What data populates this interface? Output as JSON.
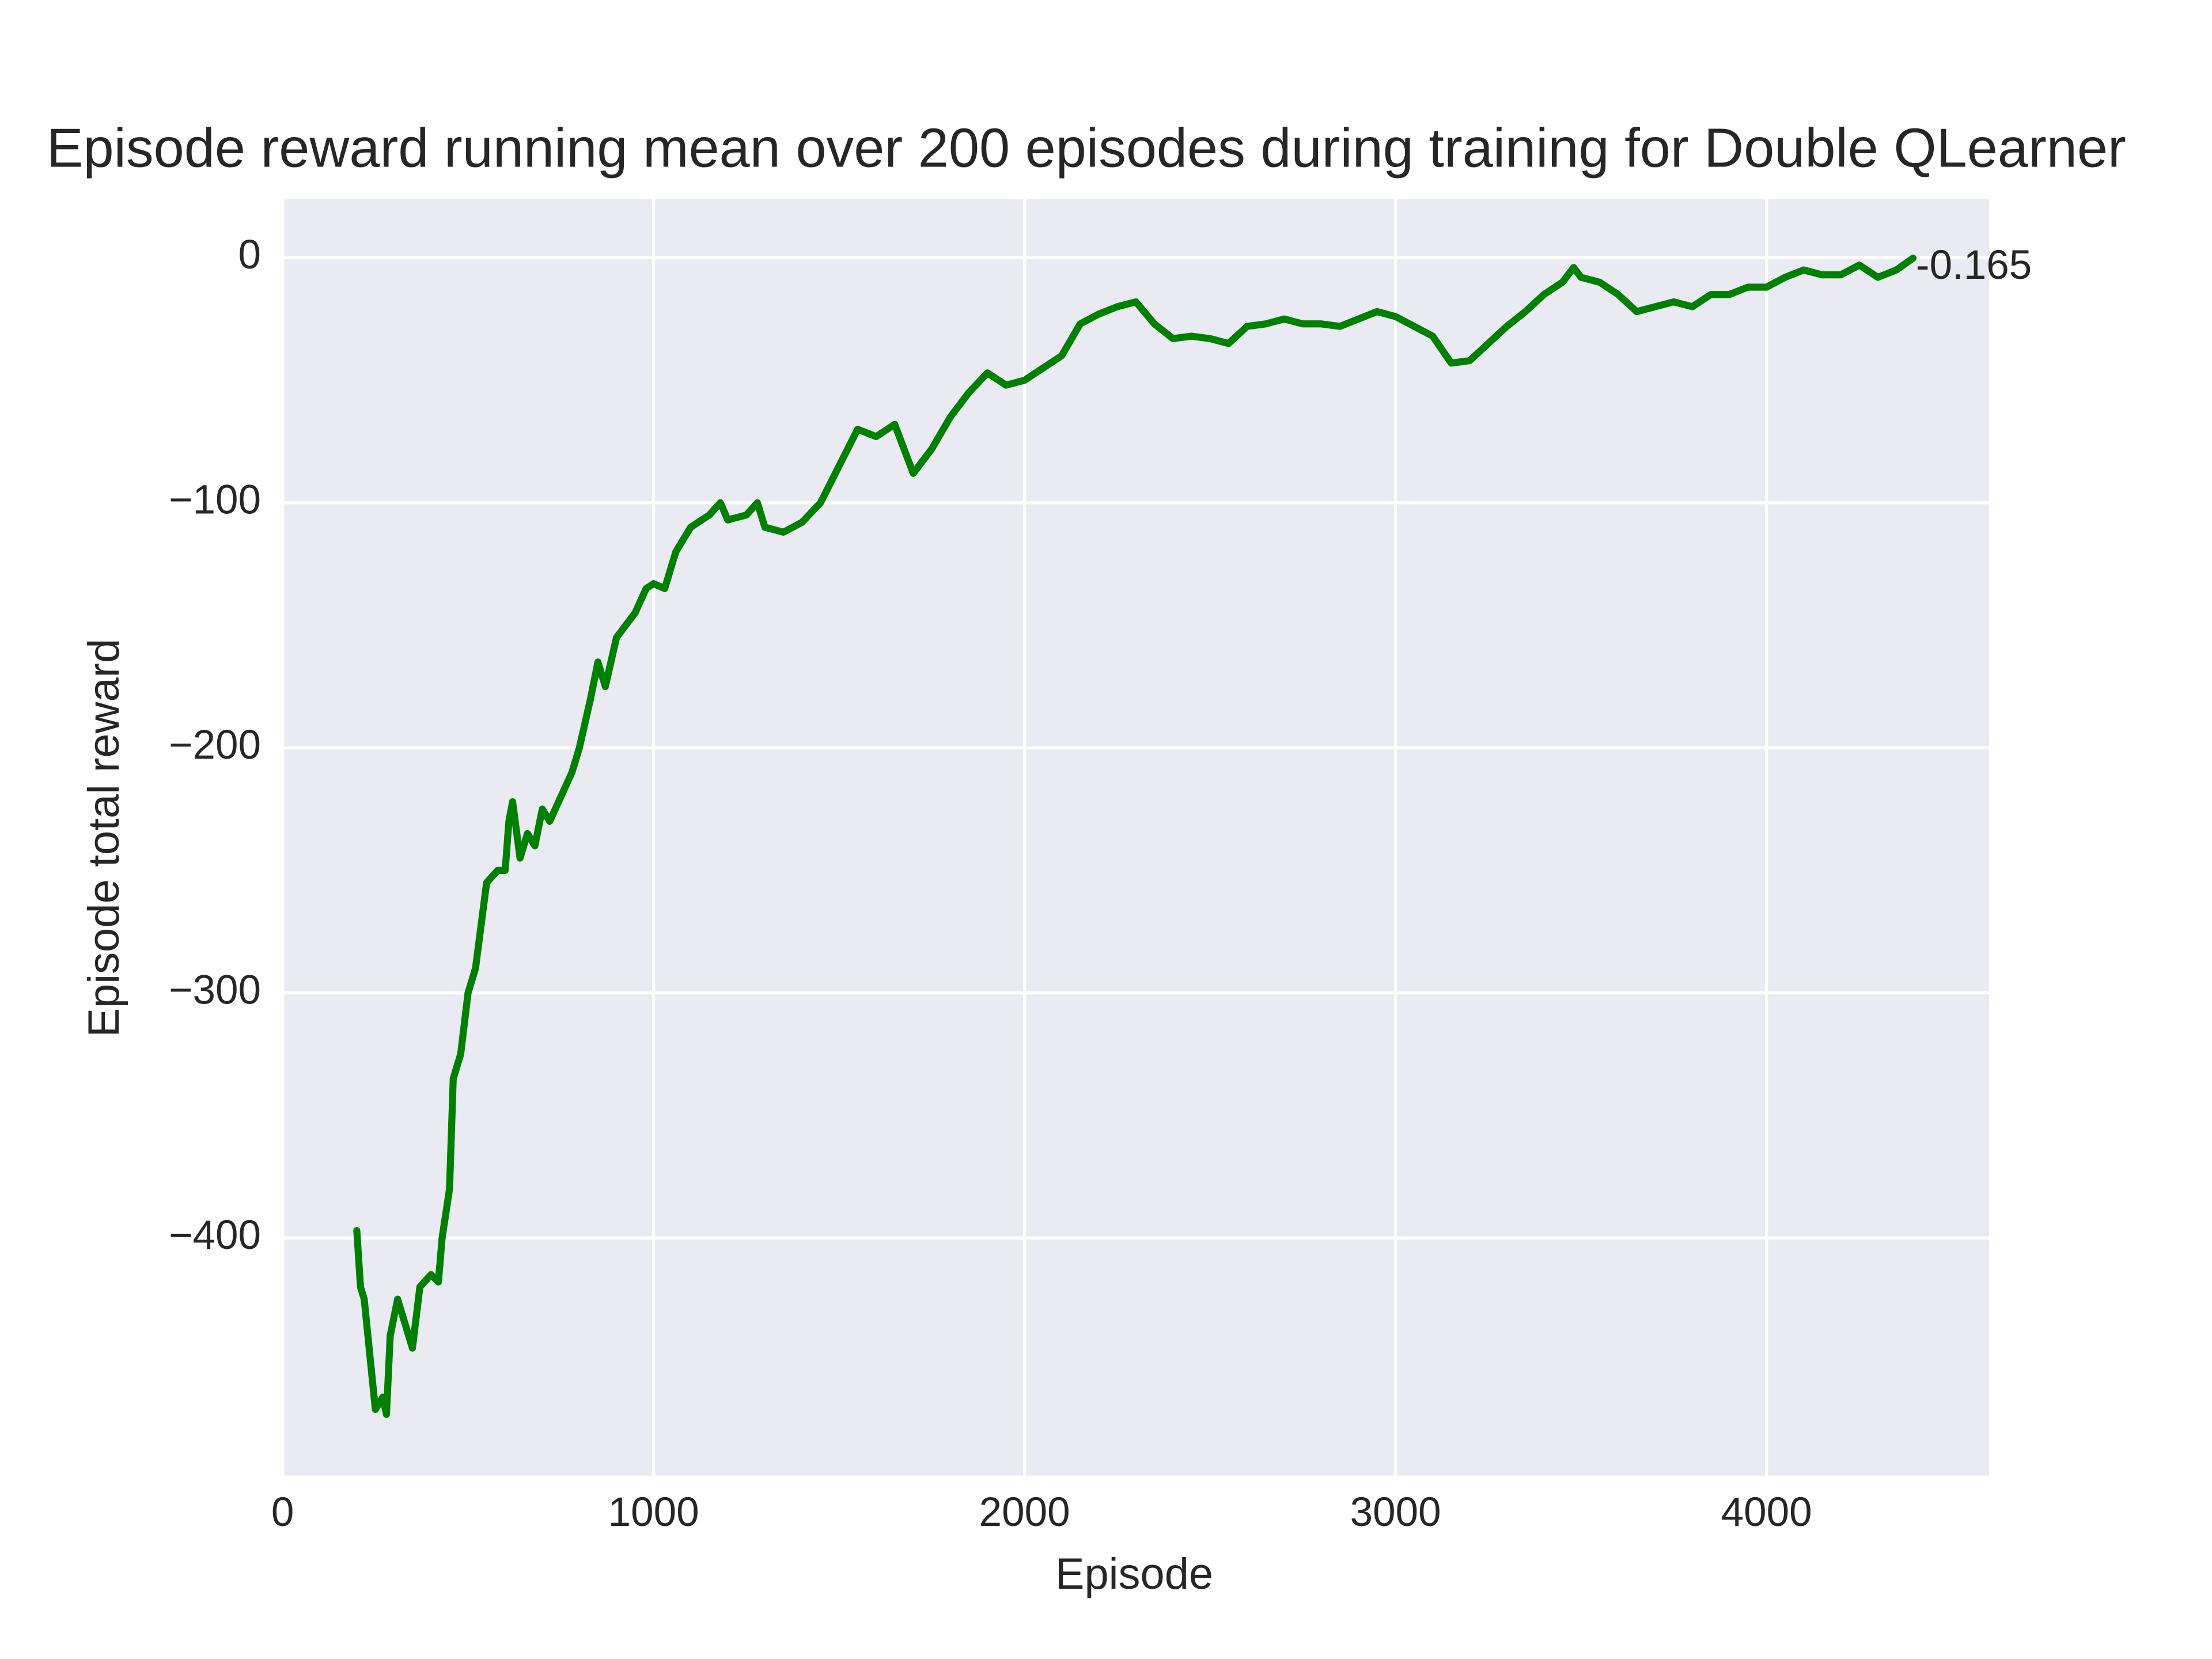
{
  "chart_data": {
    "type": "line",
    "title": "Episode reward running mean over 200 episodes during training for Double QLearner",
    "xlabel": "Episode",
    "ylabel": "Episode total reward",
    "annotation": "-0.165",
    "xlim": [
      -5,
      4600
    ],
    "ylim": [
      -497,
      24
    ],
    "xticks": [
      0,
      1000,
      2000,
      3000,
      4000
    ],
    "yticks": [
      {
        "value": -400,
        "label": "−400"
      },
      {
        "value": -300,
        "label": "−300"
      },
      {
        "value": -200,
        "label": "−200"
      },
      {
        "value": -100,
        "label": "−100"
      },
      0
    ],
    "grid": true,
    "x": [
      200,
      210,
      220,
      240,
      250,
      270,
      280,
      290,
      310,
      330,
      350,
      370,
      400,
      420,
      430,
      450,
      460,
      480,
      500,
      520,
      550,
      580,
      600,
      610,
      620,
      640,
      660,
      680,
      700,
      720,
      750,
      780,
      800,
      830,
      850,
      870,
      900,
      950,
      980,
      1000,
      1030,
      1060,
      1100,
      1150,
      1180,
      1200,
      1250,
      1280,
      1300,
      1350,
      1400,
      1450,
      1500,
      1550,
      1600,
      1650,
      1700,
      1750,
      1800,
      1850,
      1900,
      1950,
      2000,
      2050,
      2100,
      2150,
      2200,
      2250,
      2300,
      2350,
      2400,
      2450,
      2500,
      2550,
      2600,
      2650,
      2700,
      2750,
      2800,
      2850,
      2900,
      2950,
      3000,
      3050,
      3100,
      3150,
      3200,
      3250,
      3300,
      3350,
      3400,
      3450,
      3480,
      3500,
      3550,
      3600,
      3650,
      3700,
      3750,
      3800,
      3850,
      3900,
      3950,
      4000,
      4050,
      4100,
      4150,
      4200,
      4250,
      4300,
      4350,
      4395
    ],
    "series": [
      {
        "name": "Double QLearner",
        "color": "#008000",
        "values": [
          -397,
          -420,
          -425,
          -455,
          -470,
          -465,
          -472,
          -440,
          -425,
          -435,
          -445,
          -420,
          -415,
          -418,
          -400,
          -380,
          -335,
          -325,
          -300,
          -290,
          -255,
          -250,
          -250,
          -230,
          -222,
          -245,
          -235,
          -240,
          -225,
          -230,
          -220,
          -210,
          -200,
          -180,
          -165,
          -175,
          -155,
          -145,
          -135,
          -133,
          -135,
          -120,
          -110,
          -105,
          -100,
          -107,
          -105,
          -100,
          -110,
          -112,
          -108,
          -100,
          -85,
          -70,
          -73,
          -68,
          -88,
          -78,
          -65,
          -55,
          -47,
          -52,
          -50,
          -45,
          -40,
          -27,
          -23,
          -20,
          -18,
          -27,
          -33,
          -32,
          -33,
          -35,
          -28,
          -27,
          -25,
          -27,
          -27,
          -28,
          -25,
          -22,
          -24,
          -28,
          -32,
          -43,
          -42,
          -35,
          -28,
          -22,
          -15,
          -10,
          -4,
          -8,
          -10,
          -15,
          -22,
          -20,
          -18,
          -20,
          -15,
          -15,
          -12,
          -12,
          -8,
          -5,
          -7,
          -7,
          -3,
          -8,
          -5,
          -0.165
        ]
      }
    ]
  }
}
